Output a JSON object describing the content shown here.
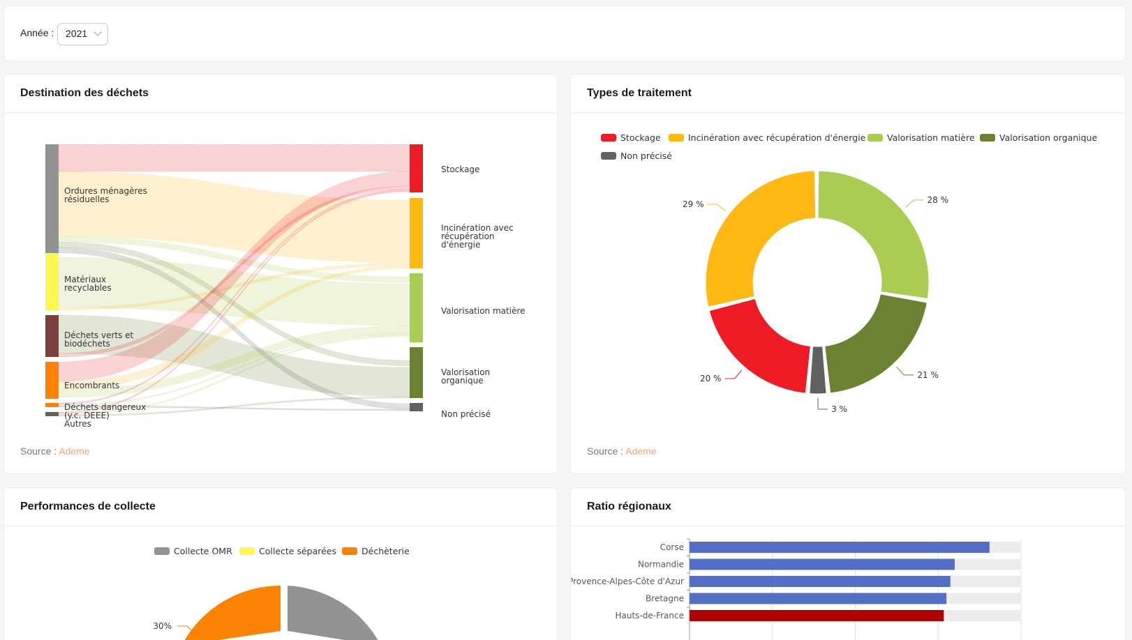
{
  "filter": {
    "label": "Année :",
    "value": "2021"
  },
  "source": {
    "prefix": "Source :",
    "link": "Ademe"
  },
  "colors": {
    "link": "#e8a87c",
    "stockage": "#ed1c24",
    "incineration": "#fdb813",
    "matiere": "#a9cc52",
    "organique": "#6a8232",
    "non_precise": "#616161",
    "omr": "#939393",
    "separees": "#fcf850",
    "decheterie": "#fd8204",
    "bar_blue": "#5470c6",
    "bar_red": "#b00000"
  },
  "sankey": {
    "title": "Destination des déchets",
    "sources": [
      {
        "line1": "Ordures ménagères",
        "line2": "résiduelles",
        "color": "#939393"
      },
      {
        "line1": "Matériaux",
        "line2": "recyclables",
        "color": "#fcf850"
      },
      {
        "line1": "Déchets verts et",
        "line2": "biodéchets",
        "color": "#7b3f3f"
      },
      {
        "line1": "Encombrants",
        "line2": "",
        "color": "#fd8204"
      },
      {
        "line1": "Déchets dangereux",
        "line2": "(y.c. DEEE)",
        "color": "#fd8204"
      },
      {
        "line1": "Autres",
        "line2": "",
        "color": "#616161"
      }
    ],
    "targets": [
      {
        "line1": "Stockage",
        "line2": "",
        "line3": "",
        "color": "#ed1c24"
      },
      {
        "line1": "Incinération avec",
        "line2": "récupération",
        "line3": "d'énergie",
        "color": "#fdb813"
      },
      {
        "line1": "Valorisation matière",
        "line2": "",
        "line3": "",
        "color": "#a9cc52"
      },
      {
        "line1": "Valorisation",
        "line2": "organique",
        "line3": "",
        "color": "#6a8232"
      },
      {
        "line1": "Non précisé",
        "line2": "",
        "line3": "",
        "color": "#616161"
      }
    ]
  },
  "donut": {
    "title": "Types de traitement",
    "legend": [
      "Stockage",
      "Incinération avec récupération d'énergie",
      "Valorisation matière",
      "Valorisation organique",
      "Non précisé"
    ],
    "labels": [
      "20 %",
      "29 %",
      "28 %",
      "21 %",
      "3 %"
    ]
  },
  "collecte": {
    "title": "Performances de collecte",
    "legend": [
      "Collecte OMR",
      "Collecte séparées",
      "Déchèterie"
    ],
    "labels": [
      "30%"
    ]
  },
  "ratios": {
    "title": "Ratio régionaux",
    "regions": [
      "Corse",
      "Normandie",
      "Provence-Alpes-Côte d'Azur",
      "Bretagne",
      "Hauts-de-France"
    ]
  },
  "chart_data": [
    {
      "type": "pie",
      "title": "Types de traitement",
      "categories": [
        "Stockage",
        "Incinération avec récupération d'énergie",
        "Valorisation matière",
        "Valorisation organique",
        "Non précisé"
      ],
      "values": [
        20,
        29,
        28,
        21,
        3
      ],
      "legend": "top"
    },
    {
      "type": "pie",
      "title": "Performances de collecte",
      "categories": [
        "Collecte OMR",
        "Collecte séparées",
        "Déchèterie"
      ],
      "values": [
        null,
        null,
        30
      ],
      "legend": "top"
    },
    {
      "type": "bar",
      "title": "Ratio régionaux",
      "categories": [
        "Corse",
        "Normandie",
        "Provence-Alpes-Côte d'Azur",
        "Bretagne",
        "Hauts-de-France"
      ],
      "values": [
        0.905,
        0.8,
        0.787,
        0.775,
        0.767
      ],
      "orientation": "horizontal",
      "grid": true
    }
  ]
}
